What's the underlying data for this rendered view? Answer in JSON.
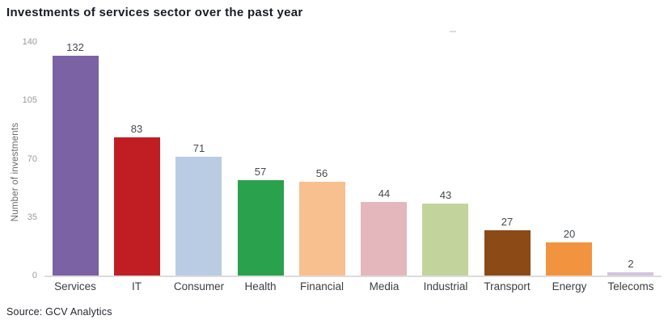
{
  "title": "Investments of services sector over the past year",
  "source_note": "Source: GCV Analytics",
  "chart_data": {
    "type": "bar",
    "title": "Investments of services sector over the past year",
    "categories": [
      "Services",
      "IT",
      "Consumer",
      "Health",
      "Financial",
      "Media",
      "Industrial",
      "Transport",
      "Energy",
      "Telecoms"
    ],
    "values": [
      132,
      83,
      71,
      57,
      56,
      44,
      43,
      27,
      20,
      2
    ],
    "bar_colors": [
      "#7a62a4",
      "#c11e23",
      "#b9cce4",
      "#2aa14d",
      "#f7c08e",
      "#e3b7bc",
      "#c2d49c",
      "#8c4a17",
      "#f2943f",
      "#d2c5df"
    ],
    "xlabel": "",
    "ylabel": "Number of investments",
    "yticks": [
      0,
      35,
      70,
      105,
      140
    ],
    "ylim": [
      0,
      140
    ],
    "grid": false,
    "legend": "none",
    "value_labels": true
  }
}
